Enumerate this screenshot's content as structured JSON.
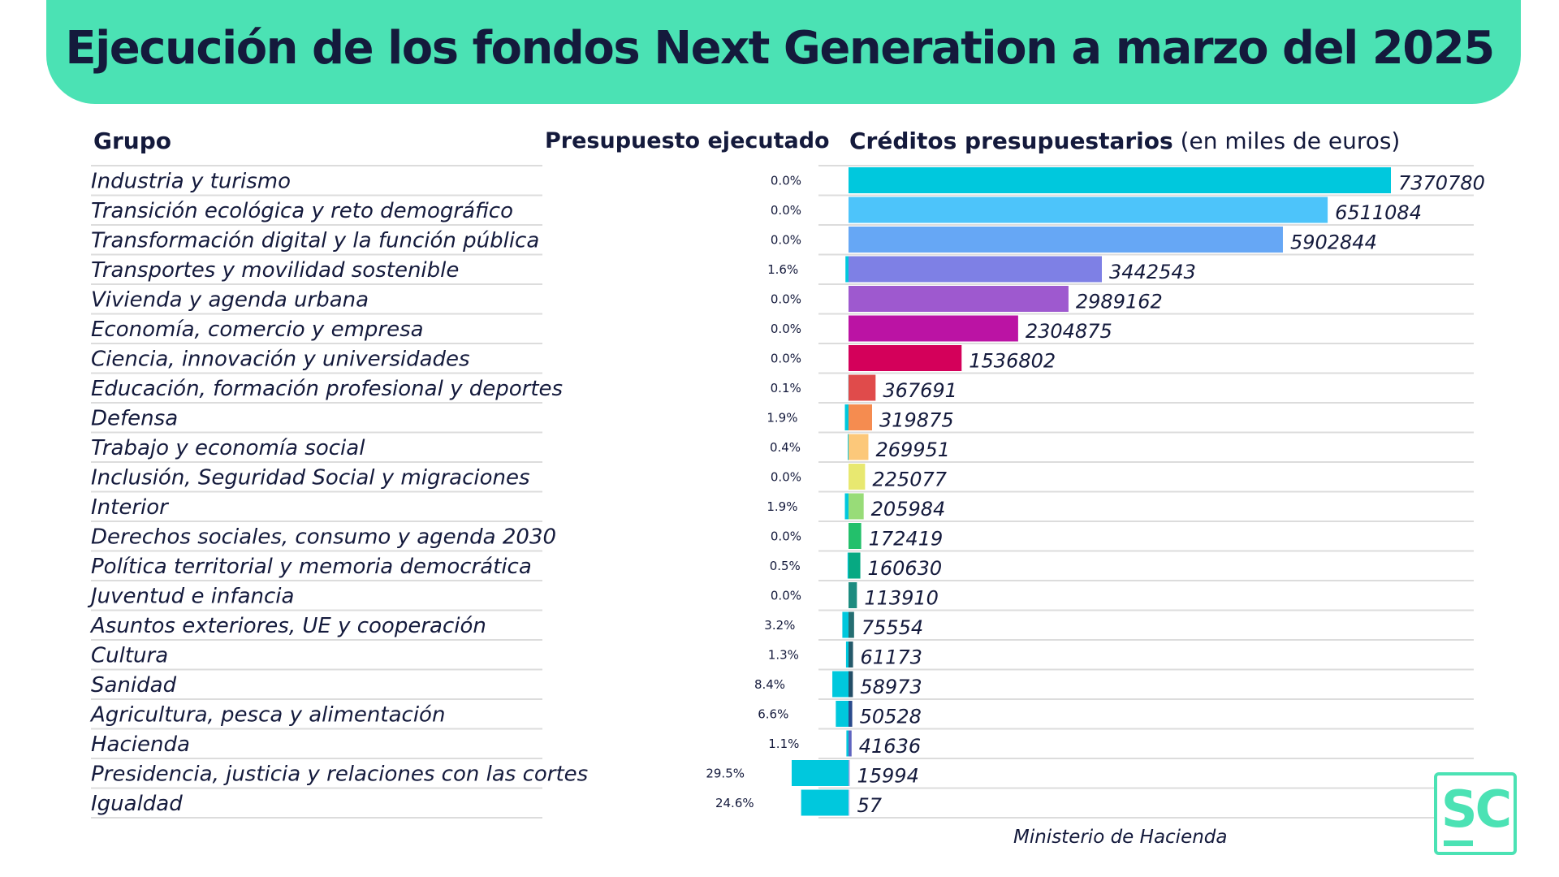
{
  "title": "Ejecución de los fondos Next Generation a marzo del 2025",
  "headers": {
    "group": "Grupo",
    "executed": "Presupuesto ejecutado",
    "credits_bold": "Créditos presupuestarios",
    "credits_light": "(en miles de euros)"
  },
  "source": "Ministerio de Hacienda",
  "logo_text": "SC",
  "colors": {
    "banner": "#4be2b4",
    "title_text": "#141a3c",
    "executed_bar": "#00c8dd",
    "grid": "#dcdcdc"
  },
  "chart_data": {
    "type": "bar",
    "categories": [
      "Industria y turismo",
      "Transición ecológica y reto demográfico",
      "Transformación digital y la función pública",
      "Transportes y movilidad sostenible",
      "Vivienda y agenda urbana",
      "Economía, comercio y empresa",
      "Ciencia, innovación y universidades",
      "Educación, formación profesional y deportes",
      "Defensa",
      "Trabajo y economía social",
      "Inclusión, Seguridad Social y migraciones",
      "Interior",
      "Derechos sociales, consumo y agenda 2030",
      "Política territorial y memoria democrática",
      "Juventud e infancia",
      "Asuntos exteriores, UE y cooperación",
      "Cultura",
      "Sanidad",
      "Agricultura, pesca y alimentación",
      "Hacienda",
      "Presidencia, justicia y relaciones con las cortes",
      "Igualdad"
    ],
    "series": [
      {
        "name": "Presupuesto ejecutado",
        "values": [
          0.0,
          0.0,
          0.0,
          1.6,
          0.0,
          0.0,
          0.0,
          0.1,
          1.9,
          0.4,
          0.0,
          1.9,
          0.0,
          0.5,
          0.0,
          3.2,
          1.3,
          8.4,
          6.6,
          1.1,
          29.5,
          24.6
        ],
        "labels": [
          "0.0%",
          "0.0%",
          "0.0%",
          "1.6%",
          "0.0%",
          "0.0%",
          "0.0%",
          "0.1%",
          "1.9%",
          "0.4%",
          "0.0%",
          "1.9%",
          "0.0%",
          "0.5%",
          "0.0%",
          "3.2%",
          "1.3%",
          "8.4%",
          "6.6%",
          "1.1%",
          "29.5%",
          "24.6%"
        ]
      },
      {
        "name": "Créditos presupuestarios",
        "values": [
          7370780,
          6511084,
          5902844,
          3442543,
          2989162,
          2304875,
          1536802,
          367691,
          319875,
          269951,
          225077,
          205984,
          172419,
          160630,
          113910,
          75554,
          61173,
          58973,
          50528,
          41636,
          15994,
          57
        ],
        "labels": [
          "7370780",
          "6511084",
          "5902844",
          "3442543",
          "2989162",
          "2304875",
          "1536802",
          "367691",
          "319875",
          "269951",
          "225077",
          "205984",
          "172419",
          "160630",
          "113910",
          "75554",
          "61173",
          "58973",
          "50528",
          "41636",
          "15994",
          "57"
        ],
        "colors": [
          "#00c8dd",
          "#4dc4fa",
          "#66a7f5",
          "#7e80e5",
          "#9e59cf",
          "#bb13a4",
          "#d4005a",
          "#e04b4b",
          "#f58c50",
          "#fcc87a",
          "#e8e870",
          "#98dc78",
          "#23c06b",
          "#07a982",
          "#1d8c80",
          "#256e72",
          "#24596a",
          "#234d66",
          "#2a4a8c",
          "#6065c0",
          "#9aa0e0",
          "#c9cef5"
        ]
      }
    ]
  }
}
